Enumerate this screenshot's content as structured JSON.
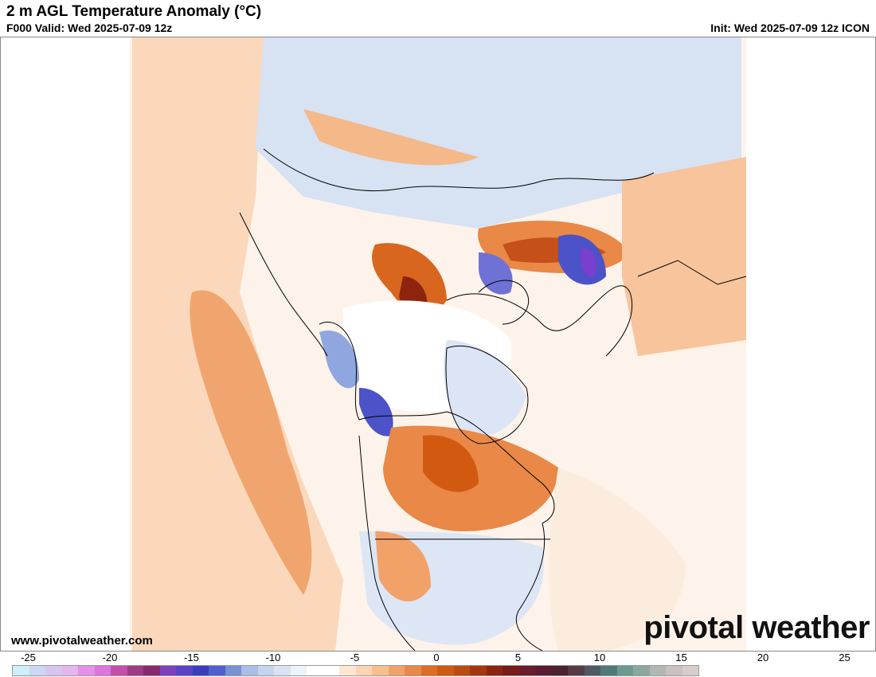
{
  "header": {
    "title": "2 m AGL Temperature Anomaly (°C)",
    "valid": "F000 Valid: Wed 2025-07-09 12z",
    "init": "Init: Wed 2025-07-09 12z ICON"
  },
  "footer": {
    "url": "www.pivotalweather.com",
    "brand_left": "piv",
    "brand_dot": "o",
    "brand_right": "tal weather"
  },
  "colorbar": {
    "labels": [
      "-25",
      "-20",
      "-15",
      "-10",
      "-5",
      "0",
      "5",
      "10",
      "15",
      "20",
      "25"
    ],
    "colors": [
      "#cdeff9",
      "#cbd8f2",
      "#d6c6ef",
      "#e3b6ec",
      "#e58fe6",
      "#de74e0",
      "#c64ea8",
      "#a23985",
      "#8a2a6e",
      "#7e3fbf",
      "#5a41c8",
      "#3a3cc0",
      "#4f5fd0",
      "#7790d6",
      "#a9bde6",
      "#c4d4ee",
      "#d8e4f4",
      "#eef2fa",
      "#ffffff",
      "#ffffff",
      "#fde7d2",
      "#fbd4b2",
      "#f8bf8e",
      "#f2a269",
      "#e98847",
      "#df6d24",
      "#d25a10",
      "#bd4a0e",
      "#a5360f",
      "#8e240f",
      "#7b1a1a",
      "#6a1c28",
      "#5a1c32",
      "#4a2230",
      "#563a48",
      "#4d5a62",
      "#4f7a78",
      "#6a9a90",
      "#8aa89e",
      "#b0b8b2",
      "#c9c0bf",
      "#d9cccb"
    ]
  },
  "map": {
    "palette": {
      "warm_light": "#fbd8bc",
      "warm_mid": "#f1a56e",
      "warm_strong": "#d9661f",
      "warm_deep": "#a5360f",
      "cool_light": "#cfdcf1",
      "cool_mid": "#8fa6de",
      "cool_strong": "#4c52c7",
      "cool_deep": "#7a3fcf"
    }
  }
}
